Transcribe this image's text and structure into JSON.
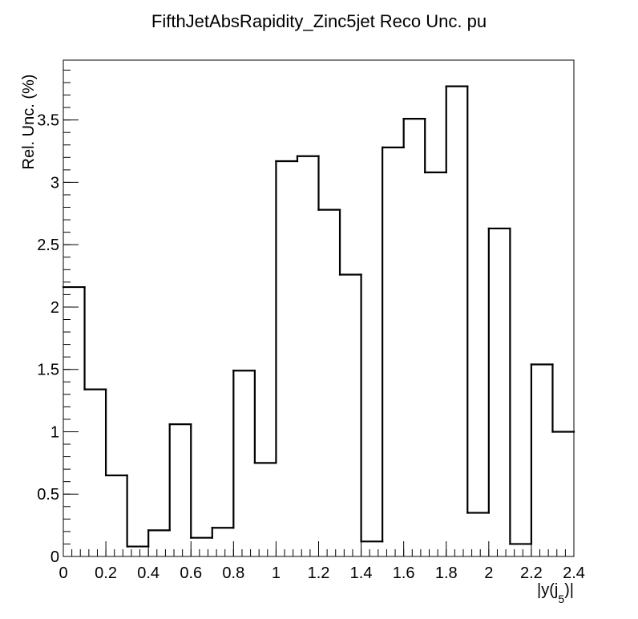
{
  "chart_data": {
    "type": "bar",
    "style": "step-histogram",
    "title": "FifthJetAbsRapidity_Zinc5jet Reco Unc. pu",
    "xlabel_main": "|y(j",
    "xlabel_sub": "5",
    "xlabel_end": ")|",
    "ylabel": "Rel. Unc. (%)",
    "xlim": [
      0,
      2.4
    ],
    "ylim": [
      0,
      3.98
    ],
    "bin_width": 0.1,
    "bin_edges": [
      0,
      0.1,
      0.2,
      0.3,
      0.4,
      0.5,
      0.6,
      0.7,
      0.8,
      0.9,
      1.0,
      1.1,
      1.2,
      1.3,
      1.4,
      1.5,
      1.6,
      1.7,
      1.8,
      1.9,
      2.0,
      2.1,
      2.2,
      2.3,
      2.4
    ],
    "values": [
      2.16,
      1.34,
      0.65,
      0.08,
      0.21,
      1.06,
      0.15,
      0.23,
      1.49,
      0.75,
      3.17,
      3.21,
      2.78,
      2.26,
      0.12,
      3.28,
      3.51,
      3.08,
      3.77,
      0.35,
      2.63,
      0.1,
      1.54,
      1.0
    ],
    "x_ticks": [
      {
        "value": 0,
        "label": "0"
      },
      {
        "value": 0.2,
        "label": "0.2"
      },
      {
        "value": 0.4,
        "label": "0.4"
      },
      {
        "value": 0.6,
        "label": "0.6"
      },
      {
        "value": 0.8,
        "label": "0.8"
      },
      {
        "value": 1.0,
        "label": "1"
      },
      {
        "value": 1.2,
        "label": "1.2"
      },
      {
        "value": 1.4,
        "label": "1.4"
      },
      {
        "value": 1.6,
        "label": "1.6"
      },
      {
        "value": 1.8,
        "label": "1.8"
      },
      {
        "value": 2.0,
        "label": "2"
      },
      {
        "value": 2.2,
        "label": "2.2"
      },
      {
        "value": 2.4,
        "label": "2.4"
      }
    ],
    "y_ticks": [
      {
        "value": 0,
        "label": "0"
      },
      {
        "value": 0.5,
        "label": "0.5"
      },
      {
        "value": 1.0,
        "label": "1"
      },
      {
        "value": 1.5,
        "label": "1.5"
      },
      {
        "value": 2.0,
        "label": "2"
      },
      {
        "value": 2.5,
        "label": "2.5"
      },
      {
        "value": 3.0,
        "label": "3"
      },
      {
        "value": 3.5,
        "label": "3.5"
      }
    ],
    "x_minor_step": 0.04,
    "y_minor_step": 0.1,
    "grid": false,
    "legend": "none",
    "line_color": "#000000",
    "background_color": "#ffffff"
  }
}
